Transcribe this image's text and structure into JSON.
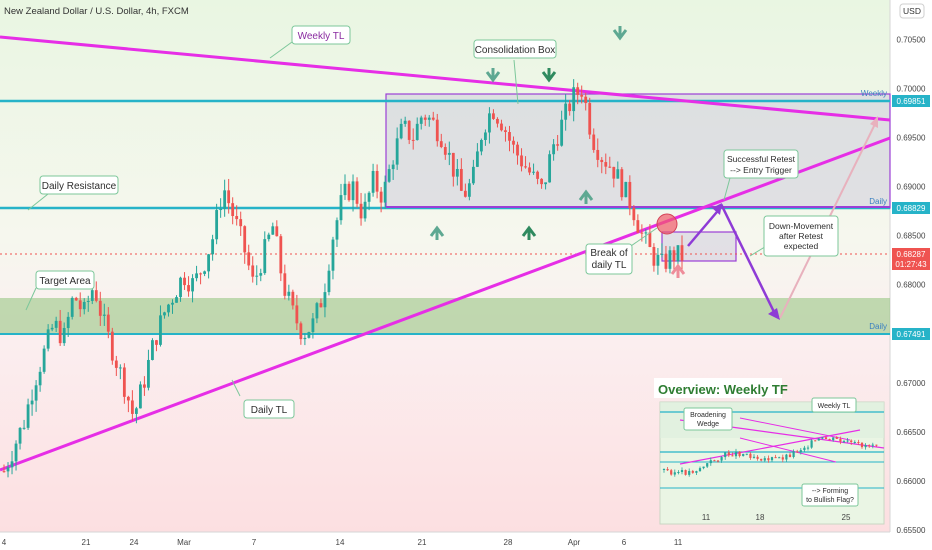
{
  "header": {
    "symbol_title": "New Zealand Dollar / U.S. Dollar, 4h, FXCM",
    "currency": "USD"
  },
  "price_axis": {
    "ticks": [
      "0.70500",
      "0.70000",
      "0.69500",
      "0.69000",
      "0.68500",
      "0.68000",
      "0.67500",
      "0.67000",
      "0.66500",
      "0.66000",
      "0.65500"
    ],
    "weekly_badge": "0.69851",
    "daily_badge": "0.68829",
    "daily_low_badge": "0.67491",
    "last_price": "0.68287",
    "countdown": "01:27:43"
  },
  "time_axis": {
    "ticks": [
      "4",
      "21",
      "24",
      "Mar",
      "7",
      "14",
      "21",
      "28",
      "Apr",
      "6",
      "11"
    ]
  },
  "colors": {
    "tl_magenta": "#e62ee6",
    "level_cyan": "#26b3c8",
    "box_purple": "#9b3fd6",
    "bull": "#26a69a",
    "bear": "#ef5350",
    "label_green": "#2e7d32"
  },
  "levels": {
    "weekly_label": "Weekly",
    "daily_label": "Daily",
    "daily_low_label": "Daily"
  },
  "annotations": {
    "weekly_tl": "Weekly TL",
    "consolidation_box": "Consolidation Box",
    "daily_resistance": "Daily Resistance",
    "target_area": "Target Area",
    "daily_tl": "Daily TL",
    "break_tl_1": "Break of",
    "break_tl_2": "daily TL",
    "retest_1": "Successful Retest",
    "retest_2": "--> Entry Trigger",
    "down_1": "Down-Movement",
    "down_2": "after Retest",
    "down_3": "expected"
  },
  "inset": {
    "title": "Overview: Weekly TF",
    "weekly_tl": "Weekly TL",
    "wedge_1": "Broadening",
    "wedge_2": "Wedge",
    "flag_1": "--> Forming",
    "flag_2": "to Bullish Flag?",
    "ticks": [
      "0.67000",
      "0.66500",
      "0.66000",
      "0.65500"
    ],
    "time_ticks": [
      "11",
      "18",
      "25"
    ]
  },
  "chart_data": {
    "type": "candlestick",
    "title": "New Zealand Dollar / U.S. Dollar, 4h, FXCM",
    "xlabel": "",
    "ylabel": "USD",
    "ylim": [
      0.6548,
      0.709
    ],
    "series": [
      {
        "values": [
          0.661,
          0.6635,
          0.666,
          0.67,
          0.673,
          0.676,
          0.6745,
          0.679,
          0.677,
          0.68,
          0.676,
          0.673,
          0.67,
          0.6665,
          0.67,
          0.674,
          0.677,
          0.679,
          0.681,
          0.68,
          0.682,
          0.685,
          0.69,
          0.687,
          0.684,
          0.68,
          0.683,
          0.686,
          0.68,
          0.677,
          0.675,
          0.676,
          0.679,
          0.685,
          0.689,
          0.69,
          0.687,
          0.6905,
          0.689,
          0.693,
          0.696,
          0.695,
          0.6975,
          0.6965,
          0.695,
          0.692,
          0.689,
          0.6905,
          0.696,
          0.698,
          0.6965,
          0.694,
          0.6925,
          0.691,
          0.6895,
          0.694,
          0.6965,
          0.699,
          0.7,
          0.695,
          0.693,
          0.692,
          0.69,
          0.688,
          0.685,
          0.683,
          0.682,
          0.683,
          0.6829
        ]
      }
    ]
  }
}
